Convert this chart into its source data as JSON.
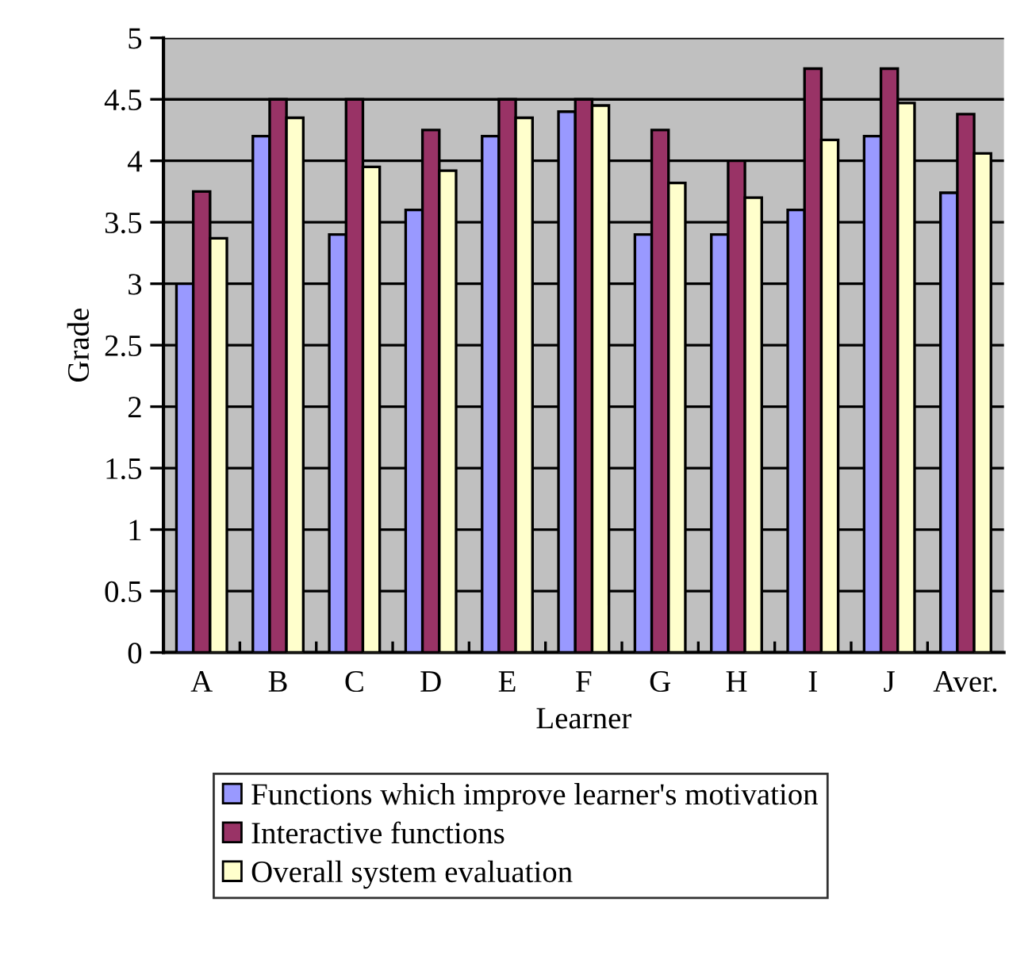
{
  "chart_data": {
    "type": "bar",
    "xlabel": "Learner",
    "ylabel": "Grade",
    "categories": [
      "A",
      "B",
      "C",
      "D",
      "E",
      "F",
      "G",
      "H",
      "I",
      "J",
      "Aver."
    ],
    "series": [
      {
        "name": "Functions which improve learner's motivation",
        "color": "#9999ff",
        "values": [
          3,
          4.2,
          3.4,
          3.6,
          4.2,
          4.4,
          3.4,
          3.4,
          3.6,
          4.2,
          3.74
        ]
      },
      {
        "name": "Interactive functions",
        "color": "#993366",
        "values": [
          3.75,
          4.5,
          4.5,
          4.25,
          4.5,
          4.5,
          4.25,
          4,
          4.75,
          4.75,
          4.38
        ]
      },
      {
        "name": "Overall system evaluation",
        "color": "#ffffcc",
        "values": [
          3.37,
          4.35,
          3.95,
          3.92,
          4.35,
          4.45,
          3.82,
          3.7,
          4.17,
          4.47,
          4.06
        ]
      }
    ],
    "ylim": [
      0,
      5
    ],
    "yticks": [
      0,
      0.5,
      1,
      1.5,
      2,
      2.5,
      3,
      3.5,
      4,
      4.5,
      5
    ],
    "grid": "y",
    "legend": "bottom"
  }
}
